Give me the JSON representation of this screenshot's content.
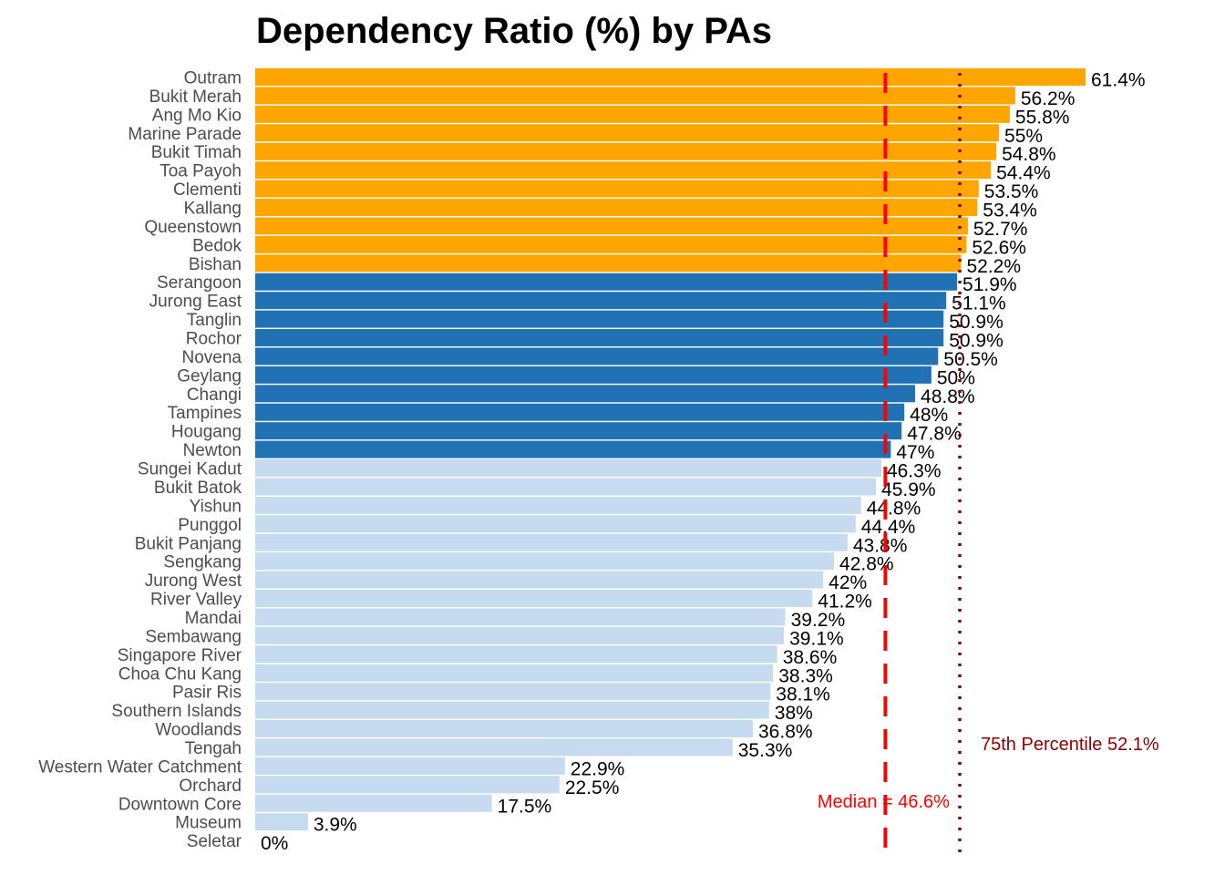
{
  "chart_data": {
    "type": "bar",
    "orientation": "horizontal",
    "title": "Dependency Ratio (%) by PAs",
    "categories": [
      "Outram",
      "Bukit Merah",
      "Ang Mo Kio",
      "Marine Parade",
      "Bukit Timah",
      "Toa Payoh",
      "Clementi",
      "Kallang",
      "Queenstown",
      "Bedok",
      "Bishan",
      "Serangoon",
      "Jurong East",
      "Tanglin",
      "Rochor",
      "Novena",
      "Geylang",
      "Changi",
      "Tampines",
      "Hougang",
      "Newton",
      "Sungei Kadut",
      "Bukit Batok",
      "Yishun",
      "Punggol",
      "Bukit Panjang",
      "Sengkang",
      "Jurong West",
      "River Valley",
      "Mandai",
      "Sembawang",
      "Singapore River",
      "Choa Chu Kang",
      "Pasir Ris",
      "Southern Islands",
      "Woodlands",
      "Tengah",
      "Western Water Catchment",
      "Orchard",
      "Downtown Core",
      "Museum",
      "Seletar"
    ],
    "values": [
      61.4,
      56.2,
      55.8,
      55,
      54.8,
      54.4,
      53.5,
      53.4,
      52.7,
      52.6,
      52.2,
      51.9,
      51.1,
      50.9,
      50.9,
      50.5,
      50,
      48.8,
      48,
      47.8,
      47,
      46.3,
      45.9,
      44.8,
      44.4,
      43.8,
      42.8,
      42,
      41.2,
      39.2,
      39.1,
      38.6,
      38.3,
      38.1,
      38,
      36.8,
      35.3,
      22.9,
      22.5,
      17.5,
      3.9,
      0
    ],
    "value_labels": [
      "61.4%",
      "56.2%",
      "55.8%",
      "55%",
      "54.8%",
      "54.4%",
      "53.5%",
      "53.4%",
      "52.7%",
      "52.6%",
      "52.2%",
      "51.9%",
      "51.1%",
      "50.9%",
      "50.9%",
      "50.5%",
      "50%",
      "48.8%",
      "48%",
      "47.8%",
      "47%",
      "46.3%",
      "45.9%",
      "44.8%",
      "44.4%",
      "43.8%",
      "42.8%",
      "42%",
      "41.2%",
      "39.2%",
      "39.1%",
      "38.6%",
      "38.3%",
      "38.1%",
      "38%",
      "36.8%",
      "35.3%",
      "22.9%",
      "22.5%",
      "17.5%",
      "3.9%",
      "0%"
    ],
    "xlim": [
      0,
      61.4
    ],
    "grid": false,
    "colors": {
      "high": "#FFA500",
      "mid": "#2171B5",
      "low": "#C6DBEF"
    },
    "color_thresholds": {
      "high_above": 52.1,
      "mid_above": 46.6
    },
    "reference_lines": [
      {
        "value": 46.6,
        "label": "Median = 46.6%",
        "style": "dashed",
        "color": "#FF0000"
      },
      {
        "value": 52.1,
        "label": "75th Percentile 52.1%",
        "style": "dotted",
        "color": "#8B0000"
      }
    ]
  }
}
